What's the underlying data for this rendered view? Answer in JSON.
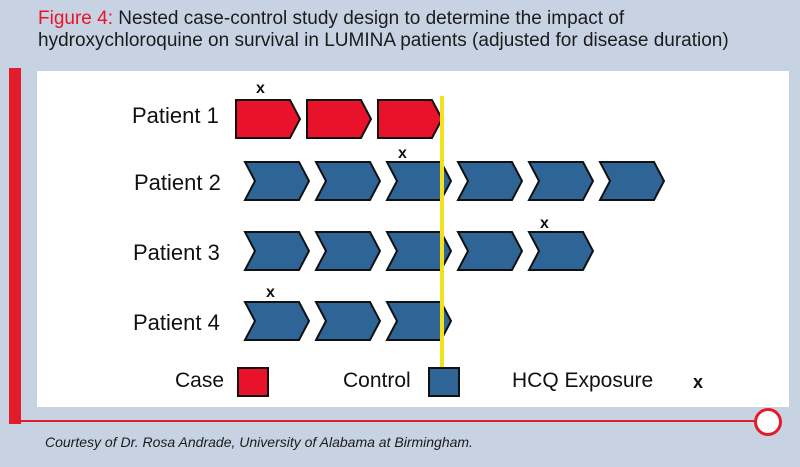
{
  "figure": {
    "label": "Figure 4:",
    "title_line1": "Nested case-control study design to determine the impact of",
    "title_line2": "hydroxychloroquine on survival in LUMINA patients (adjusted for disease duration)"
  },
  "patients": [
    {
      "label": "Patient 1",
      "type": "case",
      "segments": 3,
      "exposure_segment": 1
    },
    {
      "label": "Patient 2",
      "type": "control",
      "segments": 6,
      "exposure_segment": 3
    },
    {
      "label": "Patient 3",
      "type": "control",
      "segments": 5,
      "exposure_segment": 5
    },
    {
      "label": "Patient 4",
      "type": "control",
      "segments": 3,
      "exposure_segment": 1
    }
  ],
  "exposure_mark": "x",
  "legend": {
    "case_label": "Case",
    "control_label": "Control",
    "exposure_label": "HCQ Exposure",
    "exposure_symbol": "x"
  },
  "colors": {
    "case": "#e8132a",
    "control": "#2e6596",
    "cutoff_line": "#f2e21b",
    "accent": "#e31b2a"
  },
  "courtesy": "Courtesy of Dr. Rosa Andrade, University of Alabama at Birmingham."
}
